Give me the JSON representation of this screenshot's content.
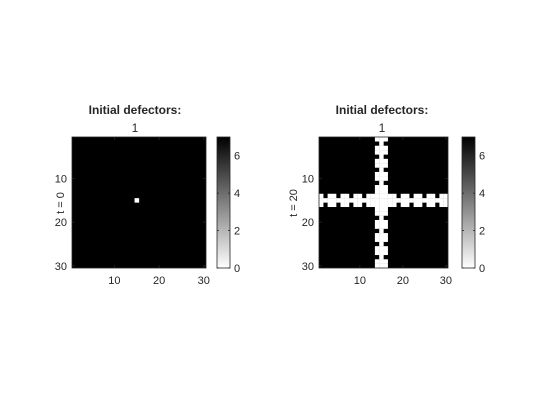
{
  "chart_data": [
    {
      "type": "heatmap",
      "title": "Initial defectors:",
      "subtitle": "1",
      "ylabel": "t = 0",
      "xlabel": "",
      "grid_size": 30,
      "xlim": [
        0.5,
        30.5
      ],
      "ylim": [
        0.5,
        30.5
      ],
      "x_ticks": [
        10,
        20,
        30
      ],
      "y_ticks": [
        10,
        20,
        30
      ],
      "colormap": "gray-reversed",
      "clim": [
        0,
        7
      ],
      "colorbar_ticks": [
        0,
        2,
        4,
        6
      ],
      "background_value": 7,
      "cells": [
        {
          "x": 15,
          "y": 15,
          "value": 0
        }
      ]
    },
    {
      "type": "heatmap",
      "title": "Initial defectors:",
      "subtitle": "1",
      "ylabel": "t = 20",
      "xlabel": "",
      "grid_size": 30,
      "xlim": [
        0.5,
        30.5
      ],
      "ylim": [
        0.5,
        30.5
      ],
      "x_ticks": [
        10,
        20,
        30
      ],
      "y_ticks": [
        10,
        20,
        30
      ],
      "colormap": "gray-reversed",
      "clim": [
        0,
        7
      ],
      "colorbar_ticks": [
        0,
        2,
        4,
        6
      ],
      "background_value": 7,
      "cells": [
        {
          "x": 14,
          "y": 1,
          "value": 0
        },
        {
          "x": 15,
          "y": 1,
          "value": 0
        },
        {
          "x": 16,
          "y": 1,
          "value": 0
        },
        {
          "x": 15,
          "y": 2,
          "value": 0
        },
        {
          "x": 14,
          "y": 3,
          "value": 0
        },
        {
          "x": 15,
          "y": 3,
          "value": 0
        },
        {
          "x": 16,
          "y": 3,
          "value": 0
        },
        {
          "x": 14,
          "y": 4,
          "value": 0
        },
        {
          "x": 15,
          "y": 4,
          "value": 0
        },
        {
          "x": 16,
          "y": 4,
          "value": 0
        },
        {
          "x": 15,
          "y": 5,
          "value": 0
        },
        {
          "x": 14,
          "y": 6,
          "value": 0
        },
        {
          "x": 15,
          "y": 6,
          "value": 0
        },
        {
          "x": 16,
          "y": 6,
          "value": 0
        },
        {
          "x": 14,
          "y": 7,
          "value": 0
        },
        {
          "x": 15,
          "y": 7,
          "value": 0
        },
        {
          "x": 16,
          "y": 7,
          "value": 0
        },
        {
          "x": 15,
          "y": 8,
          "value": 0
        },
        {
          "x": 14,
          "y": 9,
          "value": 0
        },
        {
          "x": 15,
          "y": 9,
          "value": 0
        },
        {
          "x": 16,
          "y": 9,
          "value": 0
        },
        {
          "x": 14,
          "y": 10,
          "value": 0
        },
        {
          "x": 15,
          "y": 10,
          "value": 0
        },
        {
          "x": 16,
          "y": 10,
          "value": 0
        },
        {
          "x": 15,
          "y": 11,
          "value": 0
        },
        {
          "x": 14,
          "y": 12,
          "value": 0
        },
        {
          "x": 15,
          "y": 12,
          "value": 0
        },
        {
          "x": 16,
          "y": 12,
          "value": 0
        },
        {
          "x": 14,
          "y": 13,
          "value": 0
        },
        {
          "x": 15,
          "y": 13,
          "value": 0
        },
        {
          "x": 16,
          "y": 13,
          "value": 0
        },
        {
          "x": 1,
          "y": 14,
          "value": 0
        },
        {
          "x": 3,
          "y": 14,
          "value": 0
        },
        {
          "x": 4,
          "y": 14,
          "value": 0
        },
        {
          "x": 6,
          "y": 14,
          "value": 0
        },
        {
          "x": 7,
          "y": 14,
          "value": 0
        },
        {
          "x": 9,
          "y": 14,
          "value": 0
        },
        {
          "x": 10,
          "y": 14,
          "value": 0
        },
        {
          "x": 12,
          "y": 14,
          "value": 0
        },
        {
          "x": 13,
          "y": 14,
          "value": 0
        },
        {
          "x": 14,
          "y": 14,
          "value": 0
        },
        {
          "x": 15,
          "y": 14,
          "value": 0
        },
        {
          "x": 16,
          "y": 14,
          "value": 0
        },
        {
          "x": 17,
          "y": 14,
          "value": 0
        },
        {
          "x": 18,
          "y": 14,
          "value": 0
        },
        {
          "x": 20,
          "y": 14,
          "value": 0
        },
        {
          "x": 21,
          "y": 14,
          "value": 0
        },
        {
          "x": 23,
          "y": 14,
          "value": 0
        },
        {
          "x": 24,
          "y": 14,
          "value": 0
        },
        {
          "x": 26,
          "y": 14,
          "value": 0
        },
        {
          "x": 27,
          "y": 14,
          "value": 0
        },
        {
          "x": 29,
          "y": 14,
          "value": 0
        },
        {
          "x": 30,
          "y": 14,
          "value": 0
        },
        {
          "x": 1,
          "y": 15,
          "value": 0
        },
        {
          "x": 2,
          "y": 15,
          "value": 0
        },
        {
          "x": 3,
          "y": 15,
          "value": 0
        },
        {
          "x": 4,
          "y": 15,
          "value": 0
        },
        {
          "x": 5,
          "y": 15,
          "value": 0
        },
        {
          "x": 6,
          "y": 15,
          "value": 0
        },
        {
          "x": 7,
          "y": 15,
          "value": 0
        },
        {
          "x": 8,
          "y": 15,
          "value": 0
        },
        {
          "x": 9,
          "y": 15,
          "value": 0
        },
        {
          "x": 10,
          "y": 15,
          "value": 0
        },
        {
          "x": 11,
          "y": 15,
          "value": 0
        },
        {
          "x": 12,
          "y": 15,
          "value": 0
        },
        {
          "x": 13,
          "y": 15,
          "value": 0
        },
        {
          "x": 14,
          "y": 15,
          "value": 0
        },
        {
          "x": 15,
          "y": 15,
          "value": 0
        },
        {
          "x": 16,
          "y": 15,
          "value": 0
        },
        {
          "x": 17,
          "y": 15,
          "value": 0
        },
        {
          "x": 18,
          "y": 15,
          "value": 0
        },
        {
          "x": 19,
          "y": 15,
          "value": 0
        },
        {
          "x": 20,
          "y": 15,
          "value": 0
        },
        {
          "x": 21,
          "y": 15,
          "value": 0
        },
        {
          "x": 22,
          "y": 15,
          "value": 0
        },
        {
          "x": 23,
          "y": 15,
          "value": 0
        },
        {
          "x": 24,
          "y": 15,
          "value": 0
        },
        {
          "x": 25,
          "y": 15,
          "value": 0
        },
        {
          "x": 26,
          "y": 15,
          "value": 0
        },
        {
          "x": 27,
          "y": 15,
          "value": 0
        },
        {
          "x": 28,
          "y": 15,
          "value": 0
        },
        {
          "x": 29,
          "y": 15,
          "value": 0
        },
        {
          "x": 30,
          "y": 15,
          "value": 0
        },
        {
          "x": 1,
          "y": 16,
          "value": 0
        },
        {
          "x": 3,
          "y": 16,
          "value": 0
        },
        {
          "x": 4,
          "y": 16,
          "value": 0
        },
        {
          "x": 6,
          "y": 16,
          "value": 0
        },
        {
          "x": 7,
          "y": 16,
          "value": 0
        },
        {
          "x": 9,
          "y": 16,
          "value": 0
        },
        {
          "x": 10,
          "y": 16,
          "value": 0
        },
        {
          "x": 12,
          "y": 16,
          "value": 0
        },
        {
          "x": 13,
          "y": 16,
          "value": 0
        },
        {
          "x": 14,
          "y": 16,
          "value": 0
        },
        {
          "x": 15,
          "y": 16,
          "value": 0
        },
        {
          "x": 16,
          "y": 16,
          "value": 0
        },
        {
          "x": 17,
          "y": 16,
          "value": 0
        },
        {
          "x": 18,
          "y": 16,
          "value": 0
        },
        {
          "x": 20,
          "y": 16,
          "value": 0
        },
        {
          "x": 21,
          "y": 16,
          "value": 0
        },
        {
          "x": 23,
          "y": 16,
          "value": 0
        },
        {
          "x": 24,
          "y": 16,
          "value": 0
        },
        {
          "x": 26,
          "y": 16,
          "value": 0
        },
        {
          "x": 27,
          "y": 16,
          "value": 0
        },
        {
          "x": 29,
          "y": 16,
          "value": 0
        },
        {
          "x": 30,
          "y": 16,
          "value": 0
        },
        {
          "x": 14,
          "y": 17,
          "value": 0
        },
        {
          "x": 15,
          "y": 17,
          "value": 0
        },
        {
          "x": 16,
          "y": 17,
          "value": 0
        },
        {
          "x": 14,
          "y": 18,
          "value": 0
        },
        {
          "x": 15,
          "y": 18,
          "value": 0
        },
        {
          "x": 16,
          "y": 18,
          "value": 0
        },
        {
          "x": 15,
          "y": 19,
          "value": 0
        },
        {
          "x": 14,
          "y": 20,
          "value": 0
        },
        {
          "x": 15,
          "y": 20,
          "value": 0
        },
        {
          "x": 16,
          "y": 20,
          "value": 0
        },
        {
          "x": 14,
          "y": 21,
          "value": 0
        },
        {
          "x": 15,
          "y": 21,
          "value": 0
        },
        {
          "x": 16,
          "y": 21,
          "value": 0
        },
        {
          "x": 15,
          "y": 22,
          "value": 0
        },
        {
          "x": 14,
          "y": 23,
          "value": 0
        },
        {
          "x": 15,
          "y": 23,
          "value": 0
        },
        {
          "x": 16,
          "y": 23,
          "value": 0
        },
        {
          "x": 14,
          "y": 24,
          "value": 0
        },
        {
          "x": 15,
          "y": 24,
          "value": 0
        },
        {
          "x": 16,
          "y": 24,
          "value": 0
        },
        {
          "x": 15,
          "y": 25,
          "value": 0
        },
        {
          "x": 14,
          "y": 26,
          "value": 0
        },
        {
          "x": 15,
          "y": 26,
          "value": 0
        },
        {
          "x": 16,
          "y": 26,
          "value": 0
        },
        {
          "x": 14,
          "y": 27,
          "value": 0
        },
        {
          "x": 15,
          "y": 27,
          "value": 0
        },
        {
          "x": 16,
          "y": 27,
          "value": 0
        },
        {
          "x": 15,
          "y": 28,
          "value": 0
        },
        {
          "x": 14,
          "y": 29,
          "value": 0
        },
        {
          "x": 15,
          "y": 29,
          "value": 0
        },
        {
          "x": 16,
          "y": 29,
          "value": 0
        },
        {
          "x": 14,
          "y": 30,
          "value": 0
        },
        {
          "x": 15,
          "y": 30,
          "value": 0
        },
        {
          "x": 16,
          "y": 30,
          "value": 0
        }
      ]
    }
  ]
}
